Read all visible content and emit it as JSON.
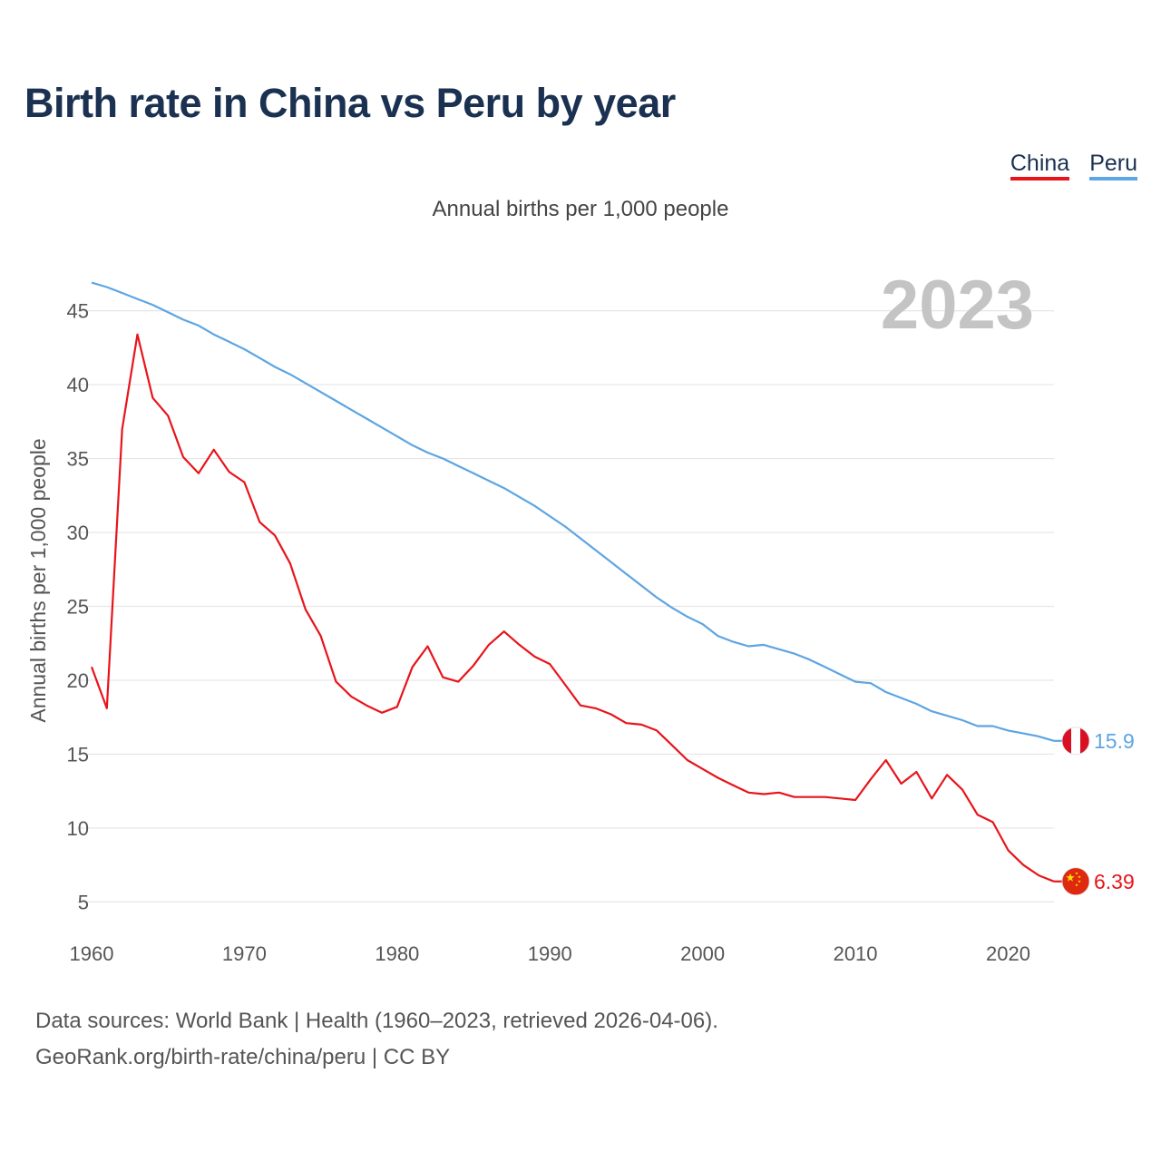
{
  "header": {
    "title": "Birth rate in China vs Peru by year"
  },
  "legend": {
    "china": "China",
    "peru": "Peru"
  },
  "footer": {
    "line1": "Data sources: World Bank | Health (1960–2023, retrieved 2026-04-06).",
    "line2": "GeoRank.org/birth-rate/china/peru | CC BY"
  },
  "colors": {
    "china": "#e8141b",
    "peru": "#5da5e3",
    "grid": "#e6e6e6",
    "title": "#1b3151"
  },
  "chart_data": {
    "type": "line",
    "title": "Birth rate in China vs Peru by year",
    "subtitle": "Annual births per 1,000 people",
    "xlabel": "",
    "ylabel": "Annual births per 1,000 people",
    "watermark_year": "2023",
    "xlim": [
      1960,
      2023
    ],
    "ylim": [
      3,
      47
    ],
    "yticks": [
      5,
      10,
      15,
      20,
      25,
      30,
      35,
      40,
      45
    ],
    "xticks": [
      1960,
      1970,
      1980,
      1990,
      2000,
      2010,
      2020
    ],
    "x": [
      1960,
      1961,
      1962,
      1963,
      1964,
      1965,
      1966,
      1967,
      1968,
      1969,
      1970,
      1971,
      1972,
      1973,
      1974,
      1975,
      1976,
      1977,
      1978,
      1979,
      1980,
      1981,
      1982,
      1983,
      1984,
      1985,
      1986,
      1987,
      1988,
      1989,
      1990,
      1991,
      1992,
      1993,
      1994,
      1995,
      1996,
      1997,
      1998,
      1999,
      2000,
      2001,
      2002,
      2003,
      2004,
      2005,
      2006,
      2007,
      2008,
      2009,
      2010,
      2011,
      2012,
      2013,
      2014,
      2015,
      2016,
      2017,
      2018,
      2019,
      2020,
      2021,
      2022,
      2023
    ],
    "series": [
      {
        "name": "China",
        "end_label": "6.39",
        "values": [
          20.9,
          18.1,
          37.0,
          43.4,
          39.1,
          37.9,
          35.1,
          34.0,
          35.6,
          34.1,
          33.4,
          30.7,
          29.8,
          27.9,
          24.8,
          23.0,
          19.9,
          18.9,
          18.3,
          17.8,
          18.2,
          20.9,
          22.3,
          20.2,
          19.9,
          21.0,
          22.4,
          23.3,
          22.4,
          21.6,
          21.1,
          19.7,
          18.3,
          18.1,
          17.7,
          17.1,
          17.0,
          16.6,
          15.6,
          14.6,
          14.0,
          13.4,
          12.9,
          12.4,
          12.3,
          12.4,
          12.1,
          12.1,
          12.1,
          12.0,
          11.9,
          13.3,
          14.6,
          13.0,
          13.8,
          12.0,
          13.6,
          12.6,
          10.9,
          10.4,
          8.5,
          7.5,
          6.8,
          6.39
        ]
      },
      {
        "name": "Peru",
        "end_label": "15.9",
        "values": [
          46.9,
          46.6,
          46.2,
          45.8,
          45.4,
          44.9,
          44.4,
          44.0,
          43.4,
          42.9,
          42.4,
          41.8,
          41.2,
          40.7,
          40.1,
          39.5,
          38.9,
          38.3,
          37.7,
          37.1,
          36.5,
          35.9,
          35.4,
          35.0,
          34.5,
          34.0,
          33.5,
          33.0,
          32.4,
          31.8,
          31.1,
          30.4,
          29.6,
          28.8,
          28.0,
          27.2,
          26.4,
          25.6,
          24.9,
          24.3,
          23.8,
          23.0,
          22.6,
          22.3,
          22.4,
          22.1,
          21.8,
          21.4,
          20.9,
          20.4,
          19.9,
          19.8,
          19.2,
          18.8,
          18.4,
          17.9,
          17.6,
          17.3,
          16.9,
          16.9,
          16.6,
          16.4,
          16.2,
          15.9
        ]
      }
    ]
  }
}
